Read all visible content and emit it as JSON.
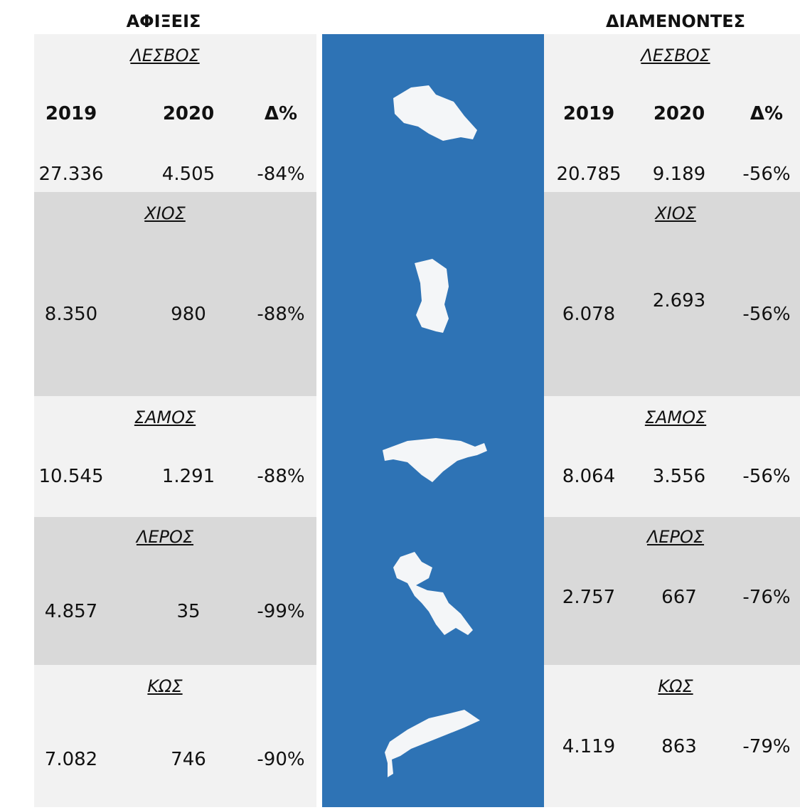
{
  "header": {
    "arrivals": "ΑΦΙΞΕΙΣ",
    "residents": "ΔΙΑΜΕΝΟΝΤΕΣ"
  },
  "columns": {
    "arrivals": [
      "2019",
      "2020",
      "Δ%"
    ],
    "residents": [
      "2019",
      "2020",
      "Δ%"
    ]
  },
  "islands": [
    {
      "name": "ΛΕΣΒΟΣ",
      "arrivals": [
        "27.336",
        "4.505",
        "-84%"
      ],
      "residents": [
        "20.785",
        "9.189",
        "-56%"
      ]
    },
    {
      "name": "ΧΙΟΣ",
      "arrivals": [
        "8.350",
        "980",
        "-88%"
      ],
      "residents": [
        "6.078",
        "2.693",
        "-56%"
      ]
    },
    {
      "name": "ΣΑΜΟΣ",
      "arrivals": [
        "10.545",
        "1.291",
        "-88%"
      ],
      "residents": [
        "8.064",
        "3.556",
        "-56%"
      ]
    },
    {
      "name": "ΛΕΡΟΣ",
      "arrivals": [
        "4.857",
        "35",
        "-99%"
      ],
      "residents": [
        "2.757",
        "667",
        "-76%"
      ]
    },
    {
      "name": "ΚΩΣ",
      "arrivals": [
        "7.082",
        "746",
        "-90%"
      ],
      "residents": [
        "4.119",
        "863",
        "-79%"
      ]
    }
  ]
}
